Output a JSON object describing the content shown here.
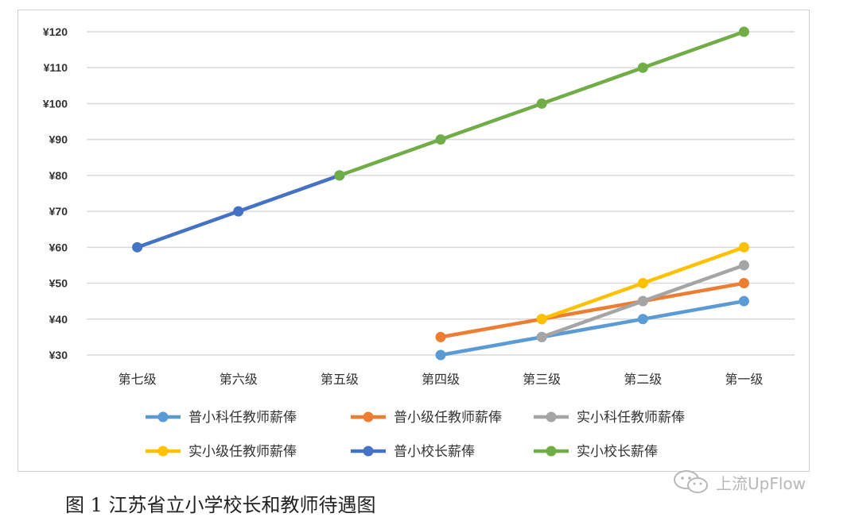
{
  "chart_data": {
    "type": "line",
    "categories": [
      "第七级",
      "第六级",
      "第五级",
      "第四级",
      "第三级",
      "第二级",
      "第一级"
    ],
    "y_tick_labels": [
      "¥30",
      "¥40",
      "¥50",
      "¥60",
      "¥70",
      "¥80",
      "¥90",
      "¥100",
      "¥110",
      "¥120"
    ],
    "ylim": [
      30,
      120
    ],
    "grid": true,
    "legend_position": "bottom",
    "series": [
      {
        "name": "普小科任教师薪俸",
        "color": "#5b9bd5",
        "values": [
          null,
          null,
          null,
          30,
          35,
          40,
          45
        ]
      },
      {
        "name": "普小级任教师薪俸",
        "color": "#ed7d31",
        "values": [
          null,
          null,
          null,
          35,
          40,
          45,
          50
        ]
      },
      {
        "name": "实小科任教师薪俸",
        "color": "#a5a5a5",
        "values": [
          null,
          null,
          null,
          null,
          35,
          45,
          55
        ]
      },
      {
        "name": "实小级任教师薪俸",
        "color": "#ffc000",
        "values": [
          null,
          null,
          null,
          null,
          40,
          50,
          60
        ]
      },
      {
        "name": "普小校长薪俸",
        "color": "#4472c4",
        "values": [
          60,
          70,
          80,
          null,
          null,
          null,
          null
        ]
      },
      {
        "name": "实小校长薪俸",
        "color": "#70ad47",
        "values": [
          null,
          null,
          80,
          90,
          100,
          110,
          120
        ]
      }
    ]
  },
  "caption": "图 1  江苏省立小学校长和教师待遇图",
  "watermark": {
    "text": "上流UpFlow",
    "icon": "wechat-icon"
  }
}
